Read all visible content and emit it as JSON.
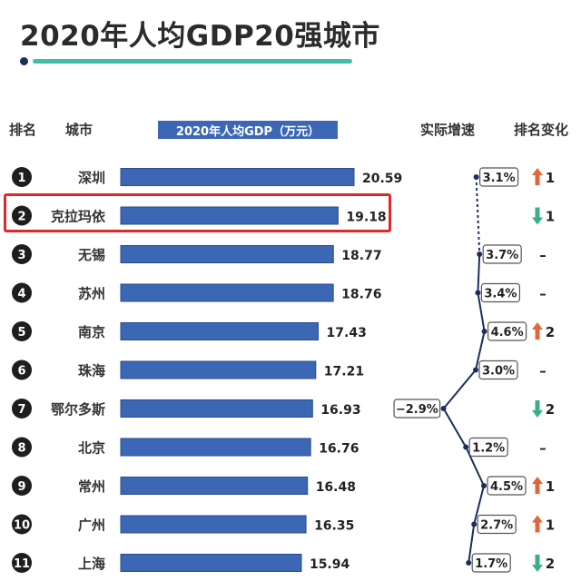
{
  "title": "2020年人均GDP20强城市",
  "headers": {
    "rank": "排名",
    "city": "城市",
    "gdp": "2020年人均GDP（万元）",
    "growth": "实际增速",
    "change": "排名变化"
  },
  "colors": {
    "bar": "#3b67b5",
    "up": "#e0673a",
    "down": "#37b08a",
    "growth_line": "#1a2f5c",
    "highlight": "#e02828",
    "accent": "#3fbfa8"
  },
  "chart_data": {
    "type": "bar",
    "orientation": "horizontal",
    "title": "2020年人均GDP20强城市",
    "categories": [
      "深圳",
      "克拉玛依",
      "无锡",
      "苏州",
      "南京",
      "珠海",
      "鄂尔多斯",
      "北京",
      "常州",
      "广州",
      "上海"
    ],
    "ranks": [
      "1",
      "2",
      "3",
      "4",
      "5",
      "6",
      "7",
      "8",
      "9",
      "10",
      "11"
    ],
    "values": [
      20.59,
      19.18,
      18.77,
      18.76,
      17.43,
      17.21,
      16.93,
      16.76,
      16.48,
      16.35,
      15.94
    ],
    "value_labels": [
      "20.59",
      "19.18",
      "18.77",
      "18.76",
      "17.43",
      "17.21",
      "16.93",
      "16.76",
      "16.48",
      "16.35",
      "15.94"
    ],
    "growth": [
      3.1,
      null,
      3.7,
      3.4,
      4.6,
      3.0,
      -2.9,
      1.2,
      4.5,
      2.7,
      1.7
    ],
    "growth_labels": [
      "3.1%",
      "",
      "3.7%",
      "3.4%",
      "4.6%",
      "3.0%",
      "−2.9%",
      "1.2%",
      "4.5%",
      "2.7%",
      "1.7%"
    ],
    "rank_change_dir": [
      "up",
      "down",
      "none",
      "none",
      "up",
      "none",
      "down",
      "none",
      "up",
      "up",
      "down"
    ],
    "rank_change_labels": [
      "1",
      "1",
      "–",
      "–",
      "2",
      "–",
      "2",
      "–",
      "1",
      "1",
      "2"
    ],
    "highlighted_city": "克拉玛依"
  }
}
